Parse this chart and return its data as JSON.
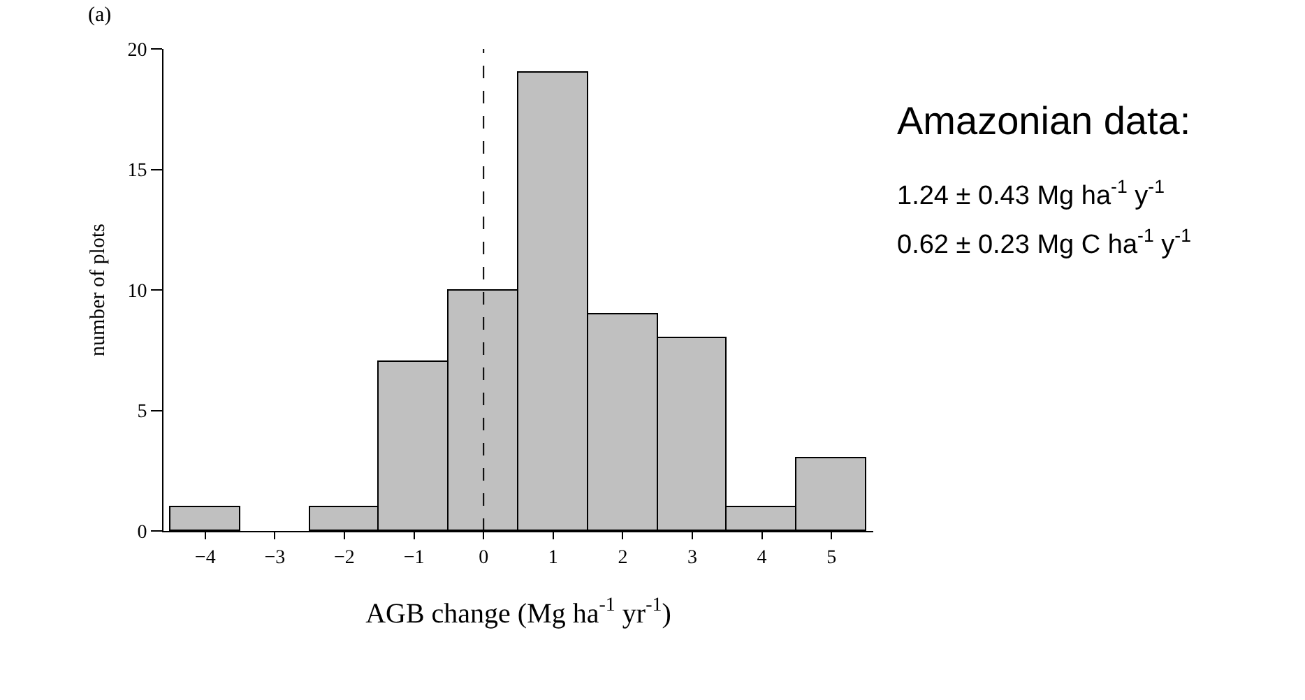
{
  "chart_data": {
    "type": "histogram",
    "bins": [
      -4.5,
      -3.5,
      -2.5,
      -1.5,
      -0.5,
      0.5,
      1.5,
      2.5,
      3.5,
      4.5,
      5.5
    ],
    "values": [
      1,
      0,
      1,
      7,
      10,
      19,
      9,
      8,
      1,
      3
    ],
    "color": "#c0c0c0",
    "xlabel": "AGB change (Mg ha$^{-1}$ yr$^{-1}$)",
    "ylabel": "number of plots",
    "xlim": [
      -4.6,
      5.6
    ],
    "xticks": [
      -4,
      -3,
      -2,
      -1,
      0,
      1,
      2,
      3,
      4,
      5
    ],
    "ylim": [
      0,
      20
    ],
    "yticks": [
      0,
      5,
      10,
      15,
      20
    ],
    "ref_lines": [
      {
        "axis": "x",
        "value": 0,
        "line_style": "dashed",
        "color": "#000000"
      }
    ],
    "annotations": [
      "(a)",
      "Amazonian data:",
      "1.24 ± 0.43 Mg ha$^{-1}$ y$^{-1}$",
      "0.62 ± 0.23 Mg C ha$^{-1}$ y$^{-1}$"
    ]
  }
}
